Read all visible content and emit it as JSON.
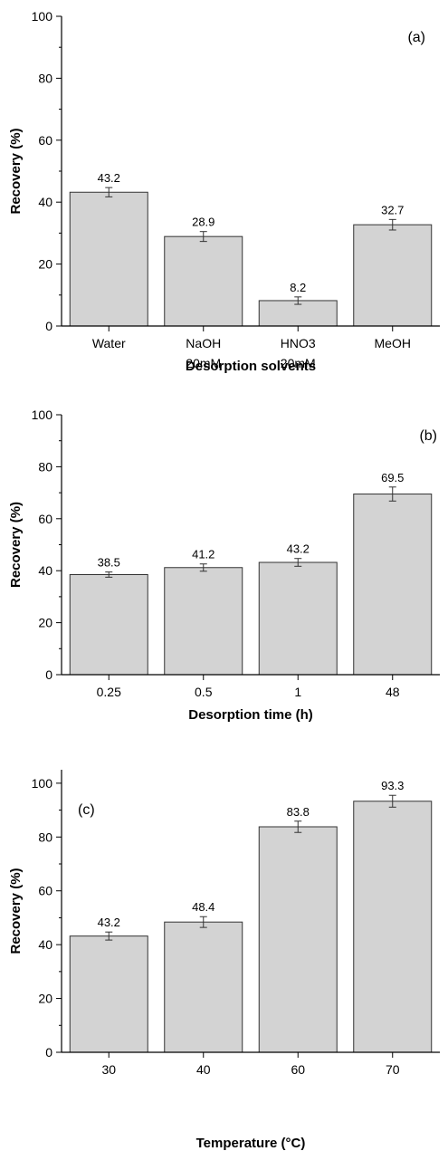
{
  "chart_data": [
    {
      "type": "bar",
      "panel_label": "(a)",
      "categories": [
        [
          "Water"
        ],
        [
          "NaOH",
          "20mM"
        ],
        [
          "HNO3",
          "20mM"
        ],
        [
          "MeOH"
        ]
      ],
      "values": [
        43.2,
        28.9,
        8.2,
        32.7
      ],
      "errors": [
        1.5,
        1.6,
        1.2,
        1.7
      ],
      "value_labels": [
        "43.2",
        "28.9",
        "8.2",
        "32.7"
      ],
      "xlabel": "Desorption solvents",
      "ylabel": "Recovery (%)",
      "ylim": [
        0,
        100
      ],
      "yticks": [
        0,
        20,
        40,
        60,
        80,
        100
      ],
      "bar_color": "#d3d3d3",
      "grid": false
    },
    {
      "type": "bar",
      "panel_label": "(b)",
      "categories": [
        [
          "0.25"
        ],
        [
          "0.5"
        ],
        [
          "1"
        ],
        [
          "48"
        ]
      ],
      "values": [
        38.5,
        41.2,
        43.2,
        69.5
      ],
      "errors": [
        1.0,
        1.4,
        1.5,
        2.7
      ],
      "value_labels": [
        "38.5",
        "41.2",
        "43.2",
        "69.5"
      ],
      "xlabel": "Desorption time (h)",
      "ylabel": "Recovery (%)",
      "ylim": [
        0,
        100
      ],
      "yticks": [
        0,
        20,
        40,
        60,
        80,
        100
      ],
      "bar_color": "#d3d3d3",
      "grid": false
    },
    {
      "type": "bar",
      "panel_label": "(c)",
      "categories": [
        [
          "30"
        ],
        [
          "40"
        ],
        [
          "60"
        ],
        [
          "70"
        ]
      ],
      "values": [
        43.2,
        48.4,
        83.8,
        93.3
      ],
      "errors": [
        1.5,
        2.0,
        2.1,
        2.2
      ],
      "value_labels": [
        "43.2",
        "48.4",
        "83.8",
        "93.3"
      ],
      "xlabel": "Temperature (°C)",
      "ylabel": "Recovery (%)",
      "ylim": [
        0,
        105
      ],
      "yticks": [
        0,
        20,
        40,
        60,
        80,
        100
      ],
      "bar_color": "#d3d3d3",
      "grid": false
    }
  ]
}
